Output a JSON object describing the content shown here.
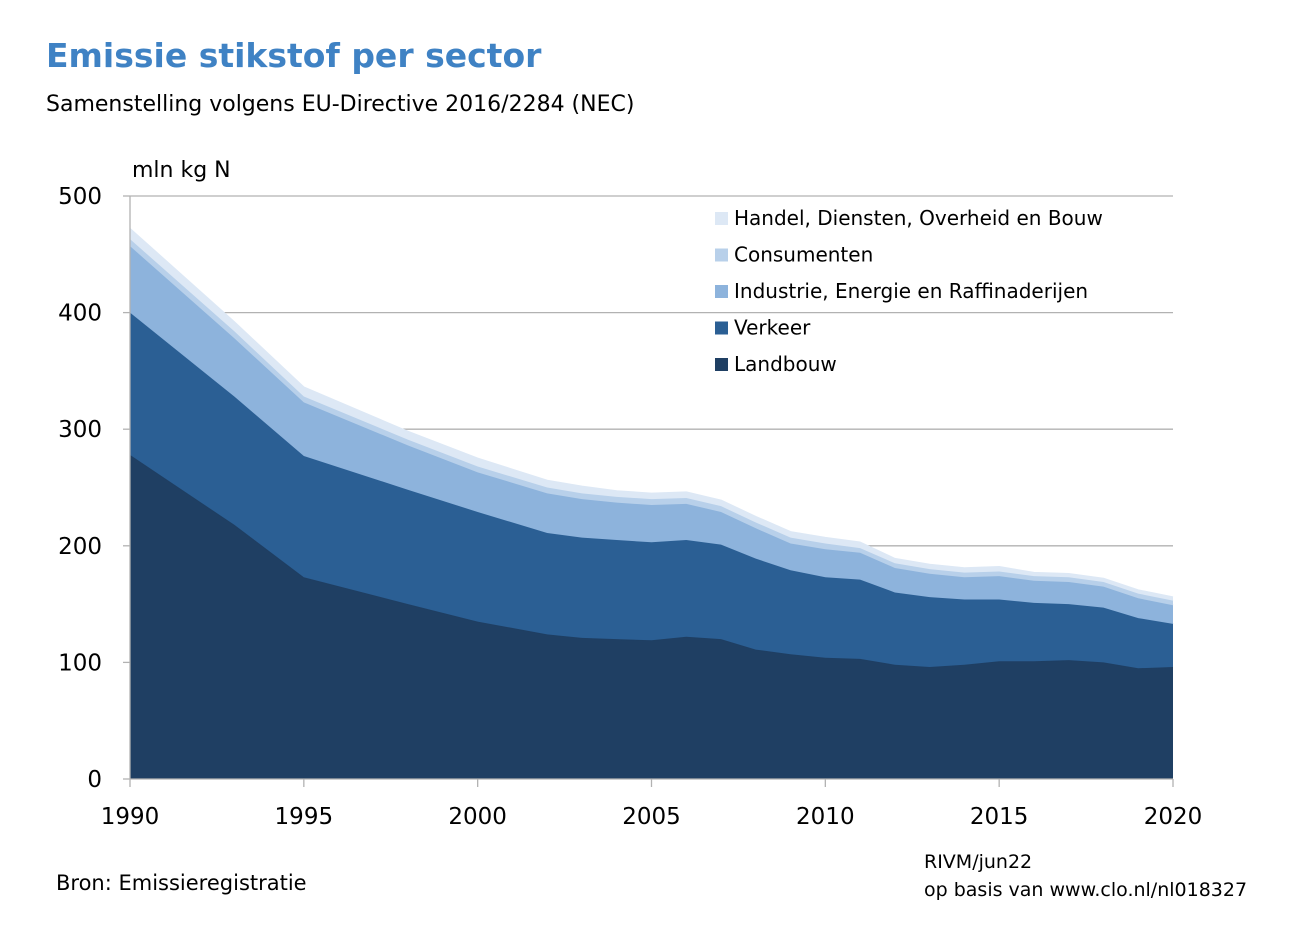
{
  "title": "Emissie stikstof per sector",
  "subtitle": "Samenstelling volgens EU-Directive 2016/2284 (NEC)",
  "footer": {
    "source": "Bron: Emissieregistratie",
    "credit_line1": "RIVM/jun22",
    "credit_line2": "op basis van www.clo.nl/nl018327"
  },
  "colors": {
    "landbouw": "#1f3f63",
    "verkeer": "#2b5f94",
    "industrie": "#8db3dc",
    "consumenten": "#b8d0ea",
    "handel": "#dde8f5",
    "grid": "#b2b2b2",
    "title": "#3f82c4"
  },
  "chart_data": {
    "type": "area",
    "stacked": true,
    "ylabel": "mln kg N",
    "xlabel": "",
    "ylim": [
      0,
      500
    ],
    "xlim": [
      1990,
      2020
    ],
    "yticks": [
      0,
      100,
      200,
      300,
      400,
      500
    ],
    "xticks": [
      1990,
      1995,
      2000,
      2005,
      2010,
      2015,
      2020
    ],
    "grid": "horizontal",
    "legend_position": "top-right",
    "x": [
      1990,
      1993,
      1995,
      1998,
      2000,
      2002,
      2003,
      2004,
      2005,
      2006,
      2007,
      2008,
      2009,
      2010,
      2011,
      2012,
      2013,
      2014,
      2015,
      2016,
      2017,
      2018,
      2019,
      2020
    ],
    "series": [
      {
        "name": "Landbouw",
        "color_key": "landbouw",
        "values": [
          278,
          218,
          173,
          150,
          135,
          124,
          121,
          120,
          119,
          122,
          120,
          111,
          107,
          104,
          103,
          98,
          96,
          98,
          101,
          101,
          102,
          100,
          95,
          96
        ]
      },
      {
        "name": "Verkeer",
        "color_key": "verkeer",
        "values": [
          122,
          110,
          104,
          98,
          94,
          87,
          86,
          85,
          84,
          83,
          81,
          78,
          72,
          69,
          68,
          62,
          60,
          56,
          53,
          50,
          48,
          47,
          43,
          37
        ]
      },
      {
        "name": "Industrie, Energie en Raffinaderijen",
        "color_key": "industrie",
        "values": [
          57,
          50,
          46,
          38,
          34,
          34,
          33,
          32,
          32,
          31,
          28,
          26,
          23,
          24,
          23,
          21,
          20,
          19,
          20,
          19,
          19,
          18,
          17,
          16
        ]
      },
      {
        "name": "Consumenten",
        "color_key": "consumenten",
        "values": [
          6,
          6,
          5,
          5,
          5,
          5,
          5,
          5,
          5,
          5,
          5,
          5,
          5,
          5,
          4,
          4,
          4,
          4,
          4,
          4,
          4,
          4,
          4,
          4
        ]
      },
      {
        "name": "Handel, Diensten, Overheid en Bouw",
        "color_key": "handel",
        "values": [
          9,
          8,
          8,
          7,
          7,
          6,
          6,
          5,
          5,
          5,
          5,
          5,
          5,
          5,
          5,
          4,
          4,
          4,
          4,
          3,
          3,
          3,
          3,
          3
        ]
      }
    ]
  }
}
